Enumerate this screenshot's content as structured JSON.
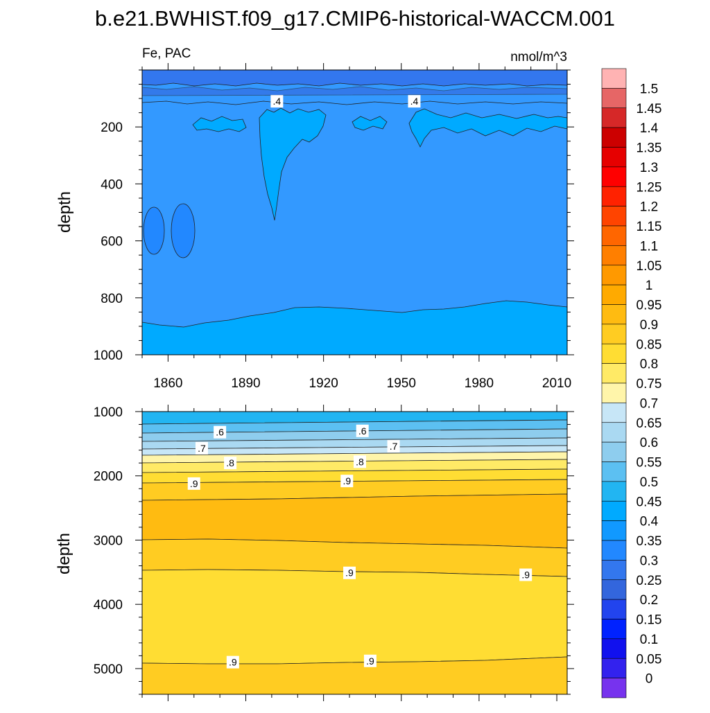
{
  "title": "b.e21.BWHIST.f09_g17.CMIP6-historical-WACCM.001",
  "chart_data": [
    {
      "type": "heatmap",
      "panel": "upper",
      "left_label": "Fe, PAC",
      "right_label": "nmol/m^3",
      "ylabel": "depth",
      "xlim": [
        1850,
        2014
      ],
      "ylim": [
        0,
        1000
      ],
      "y_reversed": true,
      "x_ticks": [
        1860,
        1890,
        1920,
        1950,
        1980,
        2010
      ],
      "y_ticks": [
        200,
        400,
        600,
        800,
        1000
      ],
      "contour_labels": [
        {
          "text": ".4",
          "x": 1902,
          "depth": 110
        },
        {
          "text": ".4",
          "x": 1955,
          "depth": 110
        }
      ],
      "dominant_levels": [
        {
          "depth_range": [
            0,
            60
          ],
          "value": 0.25
        },
        {
          "depth_range": [
            60,
            880
          ],
          "value": 0.35
        },
        {
          "depth_range": [
            880,
            1000
          ],
          "value": 0.45
        }
      ]
    },
    {
      "type": "heatmap",
      "panel": "lower",
      "ylabel": "depth",
      "xlim": [
        1850,
        2014
      ],
      "ylim": [
        1000,
        5400
      ],
      "y_reversed": true,
      "x_ticks": [
        1860,
        1890,
        1920,
        1950,
        1980,
        2010
      ],
      "y_ticks": [
        1000,
        2000,
        3000,
        4000,
        5000
      ],
      "contour_labels": [
        {
          "text": ".6",
          "x": 1880,
          "depth": 1320
        },
        {
          "text": ".6",
          "x": 1935,
          "depth": 1300
        },
        {
          "text": ".7",
          "x": 1873,
          "depth": 1570
        },
        {
          "text": ".7",
          "x": 1947,
          "depth": 1540
        },
        {
          "text": ".8",
          "x": 1884,
          "depth": 1800
        },
        {
          "text": ".8",
          "x": 1934,
          "depth": 1780
        },
        {
          "text": ".9",
          "x": 1870,
          "depth": 2120
        },
        {
          "text": ".9",
          "x": 1929,
          "depth": 2080
        },
        {
          "text": ".9",
          "x": 1930,
          "depth": 3510
        },
        {
          "text": ".9",
          "x": 1998,
          "depth": 3540
        },
        {
          "text": ".9",
          "x": 1885,
          "depth": 4900
        },
        {
          "text": ".9",
          "x": 1938,
          "depth": 4880
        }
      ]
    }
  ],
  "colorbar": {
    "labels": [
      "1.5",
      "1.45",
      "1.4",
      "1.35",
      "1.3",
      "1.25",
      "1.2",
      "1.15",
      "1.1",
      "1.05",
      "1",
      "0.95",
      "0.9",
      "0.85",
      "0.8",
      "0.75",
      "0.7",
      "0.65",
      "0.6",
      "0.55",
      "0.5",
      "0.45",
      "0.4",
      "0.35",
      "0.3",
      "0.25",
      "0.2",
      "0.15",
      "0.1",
      "0.05",
      "0"
    ],
    "colors": [
      "#ffb3b3",
      "#e66666",
      "#d62828",
      "#cc0000",
      "#e60000",
      "#ff0000",
      "#ff2200",
      "#ff4400",
      "#ff6600",
      "#ff7f00",
      "#ff9900",
      "#ffaa00",
      "#ffbb11",
      "#ffcc22",
      "#ffdd33",
      "#ffea66",
      "#fff5aa",
      "#c7e6f7",
      "#aad9f2",
      "#8ecdee",
      "#5cc0f2",
      "#22b5f2",
      "#00aaff",
      "#1199ff",
      "#2288ff",
      "#3377ee",
      "#3366dd",
      "#2244ee",
      "#0022ff",
      "#1111ee",
      "#3322ee",
      "#7733ee"
    ]
  }
}
